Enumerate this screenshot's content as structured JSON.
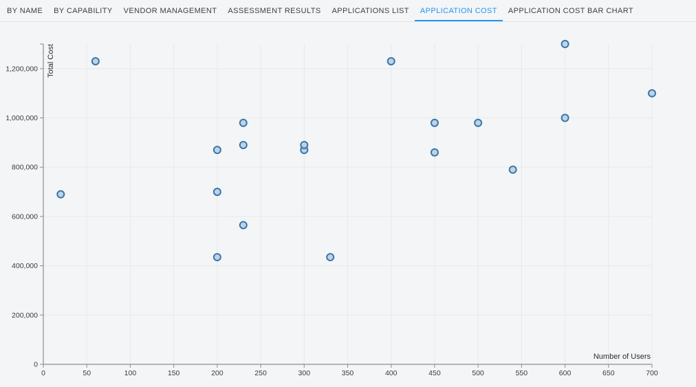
{
  "tabs": [
    {
      "label": "BY NAME",
      "active": false
    },
    {
      "label": "BY CAPABILITY",
      "active": false
    },
    {
      "label": "VENDOR MANAGEMENT",
      "active": false
    },
    {
      "label": "ASSESSMENT RESULTS",
      "active": false
    },
    {
      "label": "APPLICATIONS LIST",
      "active": false
    },
    {
      "label": "APPLICATION COST",
      "active": true
    },
    {
      "label": "APPLICATION COST BAR CHART",
      "active": false
    }
  ],
  "colors": {
    "accent": "#2095f2",
    "background": "#f4f5f6",
    "grid": "#e8e9ea",
    "axis": "#8c8c8c",
    "tick_text": "#3a3a3a",
    "marker_fill": "#b7cfe4",
    "marker_stroke": "#3a76ad"
  },
  "chart_data": {
    "type": "scatter",
    "title": "",
    "xlabel": "Number of Users",
    "ylabel": "Total Cost",
    "xlim": [
      0,
      700
    ],
    "ylim": [
      0,
      1300000
    ],
    "xticks": [
      0,
      50,
      100,
      150,
      200,
      250,
      300,
      350,
      400,
      450,
      500,
      550,
      600,
      650,
      700
    ],
    "yticks": [
      0,
      200000,
      400000,
      600000,
      800000,
      1000000,
      1200000
    ],
    "grid": true,
    "legend": false,
    "points": [
      {
        "x": 20,
        "y": 690000
      },
      {
        "x": 60,
        "y": 1230000
      },
      {
        "x": 200,
        "y": 435000
      },
      {
        "x": 200,
        "y": 700000
      },
      {
        "x": 200,
        "y": 870000
      },
      {
        "x": 230,
        "y": 565000
      },
      {
        "x": 230,
        "y": 890000
      },
      {
        "x": 230,
        "y": 980000
      },
      {
        "x": 300,
        "y": 870000
      },
      {
        "x": 300,
        "y": 890000
      },
      {
        "x": 330,
        "y": 435000
      },
      {
        "x": 400,
        "y": 1230000
      },
      {
        "x": 450,
        "y": 860000
      },
      {
        "x": 450,
        "y": 980000
      },
      {
        "x": 500,
        "y": 980000
      },
      {
        "x": 540,
        "y": 790000
      },
      {
        "x": 600,
        "y": 1000000
      },
      {
        "x": 600,
        "y": 1300000
      },
      {
        "x": 700,
        "y": 1100000
      }
    ]
  }
}
